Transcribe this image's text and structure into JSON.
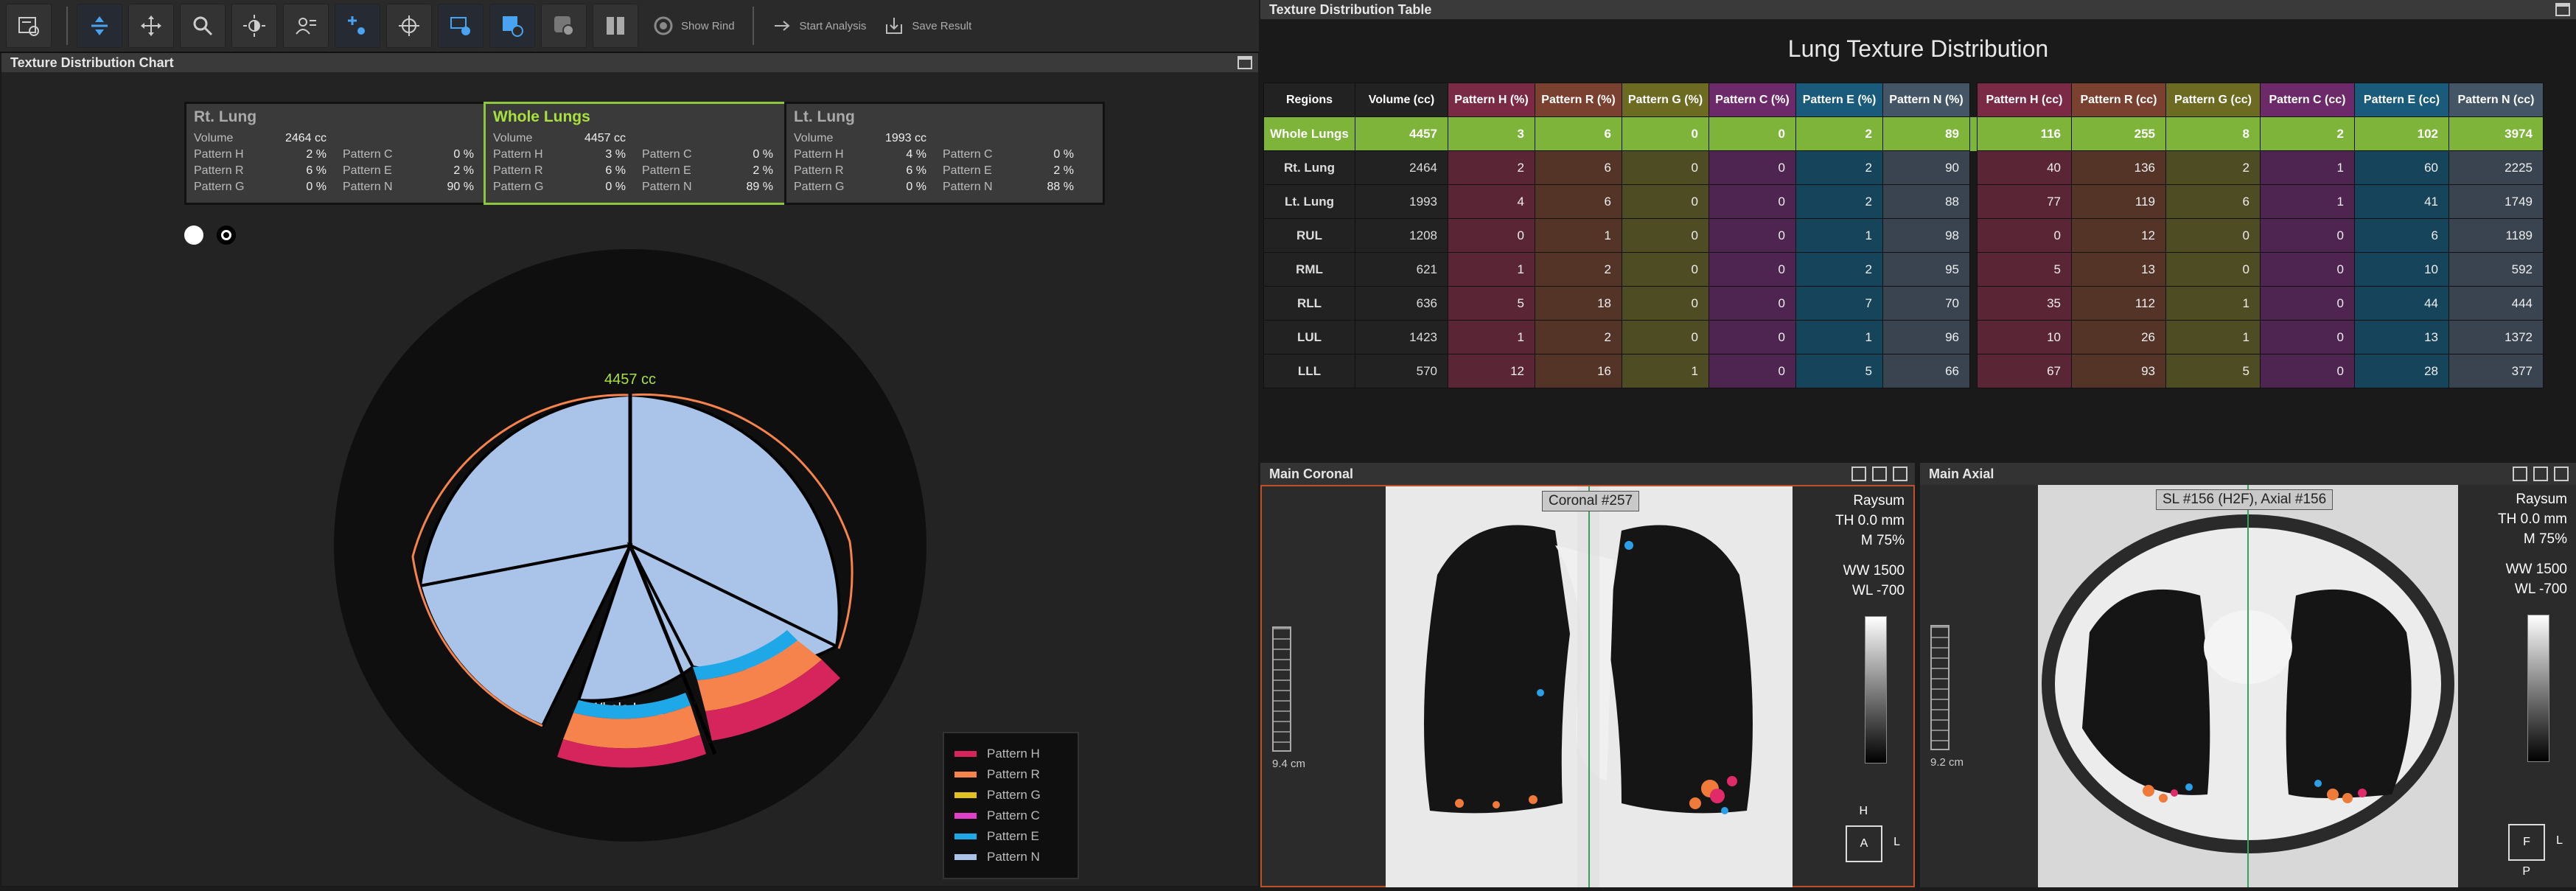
{
  "toolbar": {
    "buttons": [
      "settings-icon",
      "scroll-icon",
      "pan-icon",
      "zoom-icon",
      "brightness-icon",
      "annotation-icon",
      "add-point-icon",
      "crosshair-icon",
      "layers-icon",
      "view-icon",
      "overlay-icon",
      "split-icon"
    ],
    "show_rind": "Show Rind",
    "start_analysis": "Start Analysis",
    "save_result": "Save Result"
  },
  "chart_panel": {
    "title": "Texture Distribution Chart",
    "boxes": [
      {
        "title": "Rt. Lung",
        "volume": "2464 cc",
        "H": "2 %",
        "R": "6 %",
        "G": "0 %",
        "C": "0 %",
        "E": "2 %",
        "N": "90 %"
      },
      {
        "title": "Whole Lungs",
        "volume": "4457 cc",
        "H": "3 %",
        "R": "6 %",
        "G": "0 %",
        "C": "0 %",
        "E": "2 %",
        "N": "89 %"
      },
      {
        "title": "Lt. Lung",
        "volume": "1993 cc",
        "H": "4 %",
        "R": "6 %",
        "G": "0 %",
        "C": "0 %",
        "E": "2 %",
        "N": "88 %"
      }
    ],
    "labels": {
      "volume": "Volume",
      "H": "Pattern H",
      "R": "Pattern R",
      "G": "Pattern G",
      "C": "Pattern C",
      "E": "Pattern E",
      "N": "Pattern N"
    },
    "total_label": "4457 cc",
    "center_label": "Whole Lungs",
    "legend": [
      {
        "name": "Pattern H",
        "color": "#d6245c"
      },
      {
        "name": "Pattern R",
        "color": "#f5834b"
      },
      {
        "name": "Pattern G",
        "color": "#e0c020"
      },
      {
        "name": "Pattern C",
        "color": "#e040c8"
      },
      {
        "name": "Pattern E",
        "color": "#1fa8e8"
      },
      {
        "name": "Pattern N",
        "color": "#a9c4e8"
      }
    ]
  },
  "table_panel": {
    "title": "Texture Distribution Table",
    "heading": "Lung Texture Distribution",
    "headers": [
      "Regions",
      "Volume (cc)",
      "Pattern H (%)",
      "Pattern R (%)",
      "Pattern G (%)",
      "Pattern C (%)",
      "Pattern E (%)",
      "Pattern N (%)",
      "Pattern H (cc)",
      "Pattern R (cc)",
      "Pattern G (cc)",
      "Pattern C (cc)",
      "Pattern E (cc)",
      "Pattern N (cc)"
    ],
    "rows": [
      [
        "Whole Lungs",
        "4457",
        "3",
        "6",
        "0",
        "0",
        "2",
        "89",
        "116",
        "255",
        "8",
        "2",
        "102",
        "3974"
      ],
      [
        "Rt. Lung",
        "2464",
        "2",
        "6",
        "0",
        "0",
        "2",
        "90",
        "40",
        "136",
        "2",
        "1",
        "60",
        "2225"
      ],
      [
        "Lt. Lung",
        "1993",
        "4",
        "6",
        "0",
        "0",
        "2",
        "88",
        "77",
        "119",
        "6",
        "1",
        "41",
        "1749"
      ],
      [
        "RUL",
        "1208",
        "0",
        "1",
        "0",
        "0",
        "1",
        "98",
        "0",
        "12",
        "0",
        "0",
        "6",
        "1189"
      ],
      [
        "RML",
        "621",
        "1",
        "2",
        "0",
        "0",
        "2",
        "95",
        "5",
        "13",
        "0",
        "0",
        "10",
        "592"
      ],
      [
        "RLL",
        "636",
        "5",
        "18",
        "0",
        "0",
        "7",
        "70",
        "35",
        "112",
        "1",
        "0",
        "44",
        "444"
      ],
      [
        "LUL",
        "1423",
        "1",
        "2",
        "0",
        "0",
        "1",
        "96",
        "10",
        "26",
        "1",
        "0",
        "13",
        "1372"
      ],
      [
        "LLL",
        "570",
        "12",
        "16",
        "1",
        "0",
        "5",
        "66",
        "67",
        "93",
        "5",
        "0",
        "28",
        "377"
      ]
    ]
  },
  "coronal": {
    "title": "Main Coronal",
    "label": "Coronal #257",
    "render": "Raysum",
    "th": "TH 0.0 mm",
    "m": "M 75%",
    "ww": "WW   1500",
    "wl": "WL   -700",
    "scale": "9.4 cm",
    "orient_top": "H",
    "orient_box": "A",
    "orient_right": "L"
  },
  "axial": {
    "title": "Main Axial",
    "label": "SL #156 (H2F), Axial #156",
    "render": "Raysum",
    "th": "TH 0.0 mm",
    "m": "M 75%",
    "ww": "WW   1500",
    "wl": "WL   -700",
    "scale": "9.2 cm",
    "orient_box": "F",
    "orient_right": "L",
    "orient_bottom": "P"
  },
  "colors": {
    "accent_green": "#8dc63f",
    "pattern_H": "#d6245c",
    "pattern_R": "#f5834b",
    "pattern_G": "#e0c020",
    "pattern_C": "#e040c8",
    "pattern_E": "#1fa8e8",
    "pattern_N": "#a9c4e8"
  }
}
